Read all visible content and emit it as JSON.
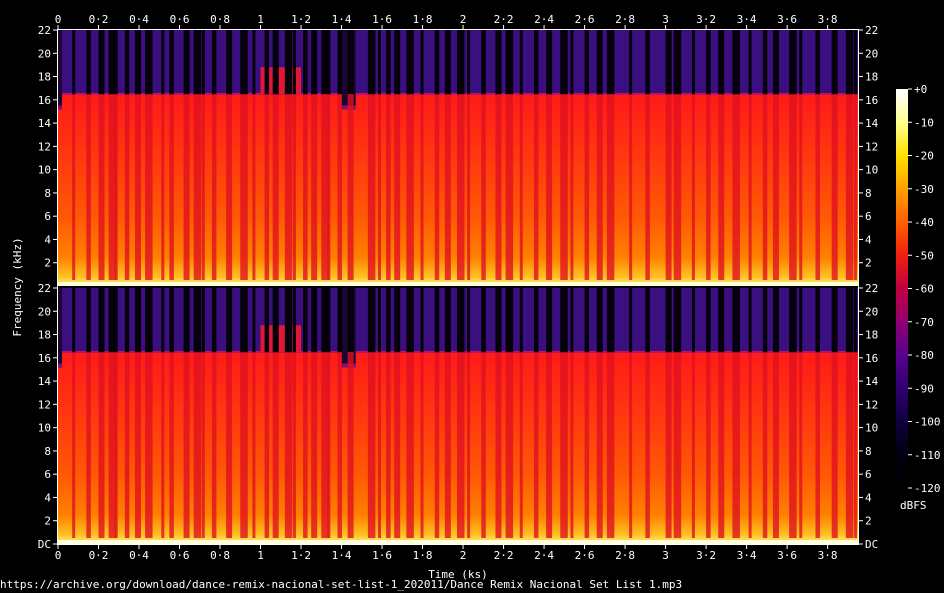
{
  "chart_data": {
    "type": "heatmap",
    "title": "",
    "xlabel": "Time (ks)",
    "ylabel": "Frequency (kHz)",
    "colorbar_label": "dBFS",
    "source": "https://archive.org/download/dance-remix-nacional-set-list-1_202011/Dance Remix Nacional Set List 1.mp3",
    "xlim": [
      0,
      3.95
    ],
    "x_ticks": [
      "0",
      "0·2",
      "0·4",
      "0·6",
      "0·8",
      "1",
      "1·2",
      "1·4",
      "1·6",
      "1·8",
      "2",
      "2·2",
      "2·4",
      "2·6",
      "2·8",
      "3",
      "3·2",
      "3·4",
      "3·6",
      "3·8"
    ],
    "ylim": [
      0,
      22
    ],
    "y_ticks_top": [
      "22",
      "20",
      "18",
      "16",
      "14",
      "12",
      "10",
      "8",
      "6",
      "4",
      "2"
    ],
    "y_ticks_bottom": [
      "22",
      "20",
      "18",
      "16",
      "14",
      "12",
      "10",
      "8",
      "6",
      "4",
      "2",
      "DC"
    ],
    "colorbar": {
      "range": [
        -120,
        0
      ],
      "ticks": [
        "+0",
        "-10",
        "-20",
        "-30",
        "-40",
        "-50",
        "-60",
        "-70",
        "-80",
        "-90",
        "-100",
        "-110",
        "-120"
      ],
      "colors": [
        "#ffffff",
        "#ffff90",
        "#ffe000",
        "#ffa000",
        "#ff6000",
        "#f02010",
        "#c00040",
        "#900070",
        "#5a0090",
        "#300070",
        "#100040",
        "#000010",
        "#000000"
      ]
    },
    "channels": [
      "left",
      "right"
    ],
    "series": [
      {
        "name": "left",
        "cutoff_khz": 16.5
      },
      {
        "name": "right",
        "cutoff_khz": 16.5
      }
    ],
    "cutoff_khz": 16.5,
    "band_18_8khz_segment": [
      1.0,
      1.2
    ],
    "low_cutoff_segments": [
      [
        0,
        0.02
      ],
      [
        1.4,
        1.47
      ]
    ],
    "dropout_times": [
      0.07,
      0.14,
      0.2,
      0.25,
      0.28,
      0.33,
      0.38,
      0.43,
      0.51,
      0.55,
      0.62,
      0.67,
      0.71,
      0.76,
      0.83,
      0.9,
      0.96,
      1.02,
      1.06,
      1.12,
      1.16,
      1.21,
      1.25,
      1.3,
      1.33,
      1.38,
      1.43,
      1.53,
      1.58,
      1.62,
      1.66,
      1.72,
      1.79,
      1.86,
      1.91,
      1.97,
      2.02,
      2.09,
      2.16,
      2.21,
      2.28,
      2.35,
      2.41,
      2.48,
      2.53,
      2.6,
      2.66,
      2.71,
      2.82,
      2.9,
      3.0,
      3.04,
      3.13,
      3.2,
      3.26,
      3.33,
      3.41,
      3.48,
      3.53,
      3.61,
      3.66,
      3.74,
      3.82,
      3.89,
      3.93
    ]
  }
}
